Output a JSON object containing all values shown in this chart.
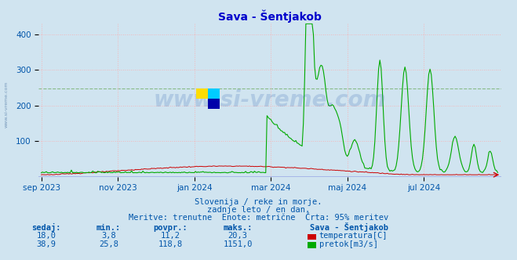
{
  "title": "Sava - Šentjakob",
  "background_color": "#d0e4f0",
  "plot_bg_color": "#d0e4f0",
  "grid_color_red": "#ffaaaa",
  "grid_color_green": "#88bb88",
  "temp_color": "#cc0000",
  "flow_color": "#00aa00",
  "blue_line_color": "#0000cc",
  "tick_color": "#0055aa",
  "title_color": "#0000cc",
  "ylim": [
    0,
    430
  ],
  "yticks": [
    100,
    200,
    300,
    400
  ],
  "green_hline": 247,
  "x_tick_labels": [
    "sep 2023",
    "nov 2023",
    "jan 2024",
    "mar 2024",
    "maj 2024",
    "jul 2024"
  ],
  "x_tick_positions": [
    0,
    61,
    122,
    183,
    244,
    305
  ],
  "n_points": 365,
  "subtitle1": "Slovenija / reke in morje.",
  "subtitle2": "zadnje leto / en dan.",
  "subtitle3": "Meritve: trenutne  Enote: metrične  Črta: 95% meritev",
  "table_headers": [
    "sedaj:",
    "min.:",
    "povpr.:",
    "maks.:"
  ],
  "table_row1": [
    "18,0",
    "3,8",
    "11,2",
    "20,3"
  ],
  "table_row2": [
    "38,9",
    "25,8",
    "118,8",
    "1151,0"
  ],
  "legend_title": "Sava - Šentjakob",
  "legend_item1": "temperatura[C]",
  "legend_item2": "pretok[m3/s]",
  "legend_color1": "#cc0000",
  "legend_color2": "#00aa00",
  "watermark": "www.si-vreme.com",
  "side_label": "www.si-vreme.com",
  "flow_scale": 0.3727,
  "temp_scale_display": 1.5
}
